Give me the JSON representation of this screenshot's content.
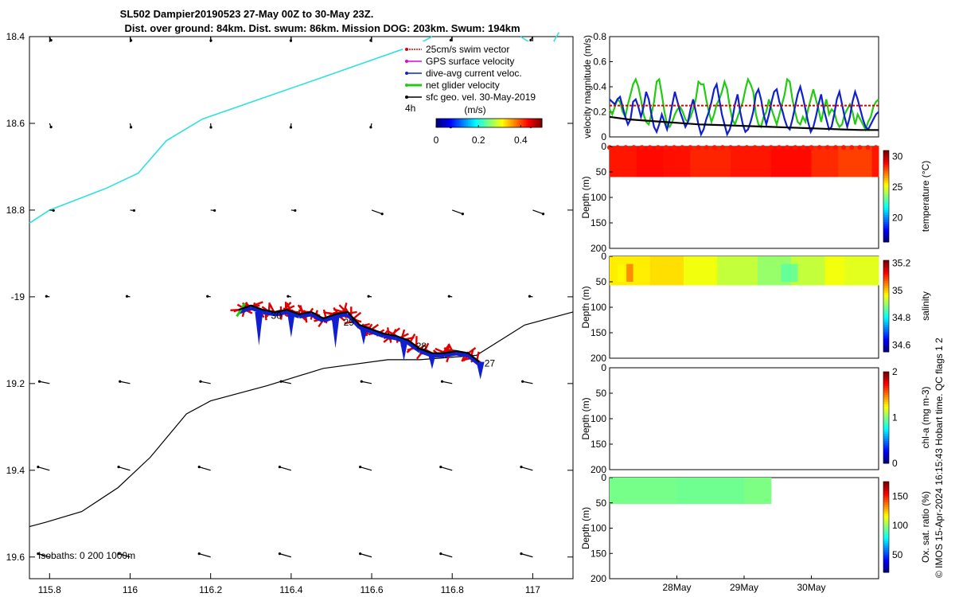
{
  "title": {
    "line1": "SL502 Dampier20190523 27-May 00Z to 30-May 23Z.",
    "line2": "Dist. over ground: 84km. Dist. swum: 86km. Mission DOG: 203km. Swum: 194km"
  },
  "credit": "© IMOS 15-Apr-2024 16:15:43 Hobart time. QC flags 1  2",
  "colors": {
    "swim": "#e00000",
    "gps": "#e000e0",
    "current": "#1020d0",
    "net": "#20cc10",
    "sfc": "#000000",
    "coast": "#30e0e0",
    "isobath": "#000000"
  },
  "chart_data": [
    {
      "id": "map",
      "type": "scatter",
      "x_ticks": [
        115.8,
        116,
        116.2,
        116.4,
        116.6,
        116.8,
        117
      ],
      "x_tick_labels": [
        "115.8",
        "116",
        "116.2",
        "116.4",
        "116.6",
        "116.8",
        "117"
      ],
      "y_ticks": [
        -18.4,
        -18.6,
        -18.8,
        -19,
        -19.2,
        -19.4,
        -19.6
      ],
      "y_tick_labels": [
        "18.4",
        "18.6",
        "18.8",
        "-19",
        "19.2",
        "19.4",
        "19.6"
      ],
      "xlim": [
        115.75,
        117.1
      ],
      "ylim": [
        -19.65,
        -18.4
      ],
      "legend": [
        {
          "label": "25cm/s swim vector",
          "color": "#e00000"
        },
        {
          "label": "GPS surface velocity",
          "color": "#e000e0"
        },
        {
          "label": "dive-avg current veloc.",
          "color": "#1020d0"
        },
        {
          "label": "net glider velocity",
          "color": "#20cc10"
        },
        {
          "label": "sfc geo. vel. 30-May-2019",
          "color": "#000000"
        }
      ],
      "legend_extra": "4h",
      "colorbar": {
        "label": "(m/s)",
        "ticks": [
          "0",
          "0.2",
          "0.4"
        ],
        "range": [
          0,
          0.5
        ]
      },
      "isobath_label": "Isobaths: 0   200  1000m",
      "track": [
        [
          116.27,
          -19.03
        ],
        [
          116.3,
          -19.02
        ],
        [
          116.33,
          -19.03
        ],
        [
          116.36,
          -19.035
        ],
        [
          116.39,
          -19.03
        ],
        [
          116.42,
          -19.04
        ],
        [
          116.45,
          -19.035
        ],
        [
          116.48,
          -19.05
        ],
        [
          116.51,
          -19.04
        ],
        [
          116.54,
          -19.035
        ],
        [
          116.57,
          -19.065
        ],
        [
          116.6,
          -19.075
        ],
        [
          116.63,
          -19.085
        ],
        [
          116.66,
          -19.09
        ],
        [
          116.69,
          -19.1
        ],
        [
          116.72,
          -19.12
        ],
        [
          116.75,
          -19.13
        ],
        [
          116.78,
          -19.13
        ],
        [
          116.81,
          -19.125
        ],
        [
          116.84,
          -19.13
        ],
        [
          116.867,
          -19.15
        ]
      ],
      "day_labels": [
        {
          "text": "30",
          "lon": 116.35,
          "lat": -19.04
        },
        {
          "text": "29",
          "lon": 116.53,
          "lat": -19.055
        },
        {
          "text": "28",
          "lon": 116.71,
          "lat": -19.11
        },
        {
          "text": "27",
          "lon": 116.88,
          "lat": -19.15
        }
      ],
      "coast": [
        [
          115.75,
          -18.83
        ],
        [
          115.8,
          -18.8
        ],
        [
          115.94,
          -18.75
        ],
        [
          116.02,
          -18.715
        ],
        [
          116.09,
          -18.64
        ],
        [
          116.18,
          -18.59
        ],
        [
          116.49,
          -18.49
        ],
        [
          116.72,
          -18.415
        ],
        [
          116.75,
          -18.4
        ]
      ],
      "coast2": [
        [
          116.97,
          -18.4
        ],
        [
          117.02,
          -18.43
        ],
        [
          117.05,
          -18.415
        ],
        [
          117.065,
          -18.39
        ]
      ],
      "isobath": [
        [
          115.75,
          -19.53
        ],
        [
          115.79,
          -19.52
        ],
        [
          115.88,
          -19.495
        ],
        [
          115.97,
          -19.44
        ],
        [
          116.05,
          -19.37
        ],
        [
          116.14,
          -19.27
        ],
        [
          116.2,
          -19.24
        ],
        [
          116.34,
          -19.205
        ],
        [
          116.48,
          -19.165
        ],
        [
          116.64,
          -19.145
        ],
        [
          116.72,
          -19.145
        ],
        [
          116.86,
          -19.135
        ],
        [
          116.98,
          -19.065
        ],
        [
          117.1,
          -19.035
        ]
      ]
    },
    {
      "id": "velocity",
      "type": "line",
      "ylabel": "velocity magnitude (m/s)",
      "ylim": [
        0,
        0.8
      ],
      "y_ticks": [
        "0",
        "0.2",
        "0.4",
        "0.6",
        "0.8"
      ],
      "series": [
        {
          "color": "#20cc10",
          "values": [
            0.22,
            0.18,
            0.24,
            0.3,
            0.28,
            0.2,
            0.16,
            0.26,
            0.34,
            0.42,
            0.46,
            0.4,
            0.3,
            0.18,
            0.12,
            0.1,
            0.18,
            0.28,
            0.44,
            0.46,
            0.34,
            0.2,
            0.1,
            0.08,
            0.12,
            0.18,
            0.22,
            0.24,
            0.2,
            0.14,
            0.12,
            0.16,
            0.22,
            0.3,
            0.44,
            0.42,
            0.42,
            0.3,
            0.2,
            0.12,
            0.18,
            0.26,
            0.3,
            0.36,
            0.44,
            0.38,
            0.24,
            0.14,
            0.1,
            0.16,
            0.22,
            0.28,
            0.38,
            0.46,
            0.42,
            0.36,
            0.18,
            0.1,
            0.08,
            0.16,
            0.2,
            0.3,
            0.22,
            0.16,
            0.1,
            0.18,
            0.26,
            0.34,
            0.46,
            0.44,
            0.3,
            0.2,
            0.12,
            0.1,
            0.16,
            0.12,
            0.22,
            0.3,
            0.38,
            0.3,
            0.22,
            0.12,
            0.22,
            0.3,
            0.18,
            0.22,
            0.2,
            0.12,
            0.08,
            0.1,
            0.18,
            0.22,
            0.26,
            0.2,
            0.1,
            0.18,
            0.14,
            0.1,
            0.06,
            0.12,
            0.16,
            0.24,
            0.28,
            0.3
          ]
        },
        {
          "color": "#1020d0",
          "values": [
            0.3,
            0.28,
            0.26,
            0.3,
            0.32,
            0.24,
            0.16,
            0.1,
            0.14,
            0.28,
            0.3,
            0.24,
            0.16,
            0.24,
            0.36,
            0.3,
            0.18,
            0.08,
            0.04,
            0.1,
            0.18,
            0.12,
            0.06,
            0.14,
            0.26,
            0.36,
            0.28,
            0.2,
            0.14,
            0.08,
            0.12,
            0.22,
            0.3,
            0.2,
            0.1,
            0.02,
            0.06,
            0.14,
            0.2,
            0.28,
            0.38,
            0.42,
            0.3,
            0.18,
            0.1,
            0.02,
            0.06,
            0.14,
            0.26,
            0.34,
            0.2,
            0.1,
            0.04,
            0.06,
            0.12,
            0.2,
            0.34,
            0.38,
            0.3,
            0.18,
            0.1,
            0.18,
            0.28,
            0.36,
            0.38,
            0.28,
            0.22,
            0.14,
            0.08,
            0.06,
            0.14,
            0.24,
            0.34,
            0.4,
            0.32,
            0.22,
            0.12,
            0.04,
            0.08,
            0.16,
            0.26,
            0.34,
            0.22,
            0.14,
            0.06,
            0.08,
            0.18,
            0.3,
            0.36,
            0.26,
            0.16,
            0.08,
            0.16,
            0.28,
            0.36,
            0.3,
            0.22,
            0.14,
            0.08,
            0.06,
            0.1,
            0.14,
            0.18,
            0.2
          ]
        },
        {
          "color": "#e00000",
          "dashed": true,
          "values": [
            0.25,
            0.25
          ]
        },
        {
          "color": "#000000",
          "values": [
            0.16,
            0.14,
            0.13,
            0.12,
            0.11,
            0.1,
            0.095,
            0.09,
            0.085,
            0.08,
            0.075,
            0.07,
            0.065,
            0.06,
            0.055,
            0.055
          ]
        }
      ]
    },
    {
      "id": "temperature",
      "type": "heatmap",
      "ylabel": "Depth (m)",
      "clabel": "temperature (°C)",
      "y_ticks": [
        "0",
        "50",
        "100",
        "150",
        "200"
      ],
      "c_ticks": [
        "30",
        "25",
        "20"
      ],
      "crange": [
        16,
        31
      ],
      "rows": [
        29.0,
        28.8,
        28.7,
        28.6,
        28.7,
        28.9,
        29.2,
        28.8,
        28.4,
        28.2,
        28.0,
        28.1,
        28.5,
        28.9
      ],
      "cells": [
        [
          0,
          0.4,
          28.8
        ],
        [
          0.4,
          0.8,
          29.0
        ],
        [
          0.8,
          1.2,
          28.9
        ],
        [
          1.2,
          1.8,
          28.6
        ],
        [
          1.8,
          2.4,
          28.8
        ],
        [
          2.4,
          3.0,
          29.0
        ],
        [
          3.0,
          3.4,
          28.5
        ],
        [
          3.4,
          3.9,
          28.2
        ],
        [
          3.9,
          4.0,
          28.8
        ]
      ]
    },
    {
      "id": "salinity",
      "type": "heatmap",
      "ylabel": "Depth (m)",
      "clabel": "salinity",
      "y_ticks": [
        "0",
        "50",
        "100",
        "150",
        "200"
      ],
      "c_ticks": [
        "35.2",
        "35",
        "34.8",
        "34.6"
      ],
      "crange": [
        34.55,
        35.22
      ],
      "segments": [
        [
          0,
          0.6,
          34.98
        ],
        [
          0.6,
          1.1,
          34.99
        ],
        [
          1.1,
          1.6,
          34.96
        ],
        [
          1.6,
          2.2,
          34.93
        ],
        [
          2.2,
          2.7,
          34.9
        ],
        [
          2.7,
          3.2,
          34.93
        ],
        [
          3.2,
          3.5,
          34.96
        ],
        [
          3.5,
          4.0,
          34.95
        ]
      ],
      "patches": [
        [
          0.25,
          0.35,
          35.06
        ],
        [
          0.12,
          0.22,
          34.97
        ],
        [
          2.55,
          2.8,
          34.86
        ]
      ]
    },
    {
      "id": "chla",
      "type": "heatmap",
      "ylabel": "Depth (m)",
      "clabel": "chl-a (mg m-3)",
      "y_ticks": [
        "0",
        "50",
        "100",
        "150",
        "200"
      ],
      "c_ticks": [
        "2",
        "1",
        "0"
      ],
      "crange": [
        0,
        2
      ]
    },
    {
      "id": "oxygen",
      "type": "heatmap",
      "ylabel": "Depth (m)",
      "clabel": "Ox. sat. ratio (%)",
      "y_ticks": [
        "0",
        "50",
        "100",
        "150",
        "200"
      ],
      "c_ticks": [
        "150",
        "100",
        "50"
      ],
      "crange": [
        20,
        175
      ],
      "segments": [
        [
          0,
          1.0,
          96
        ],
        [
          1.0,
          2.0,
          95
        ],
        [
          2.0,
          2.4,
          97
        ]
      ],
      "x_ticks": [
        "28May",
        "29May",
        "30May"
      ],
      "x_tick_pos": [
        1.0,
        2.0,
        3.0
      ]
    }
  ]
}
